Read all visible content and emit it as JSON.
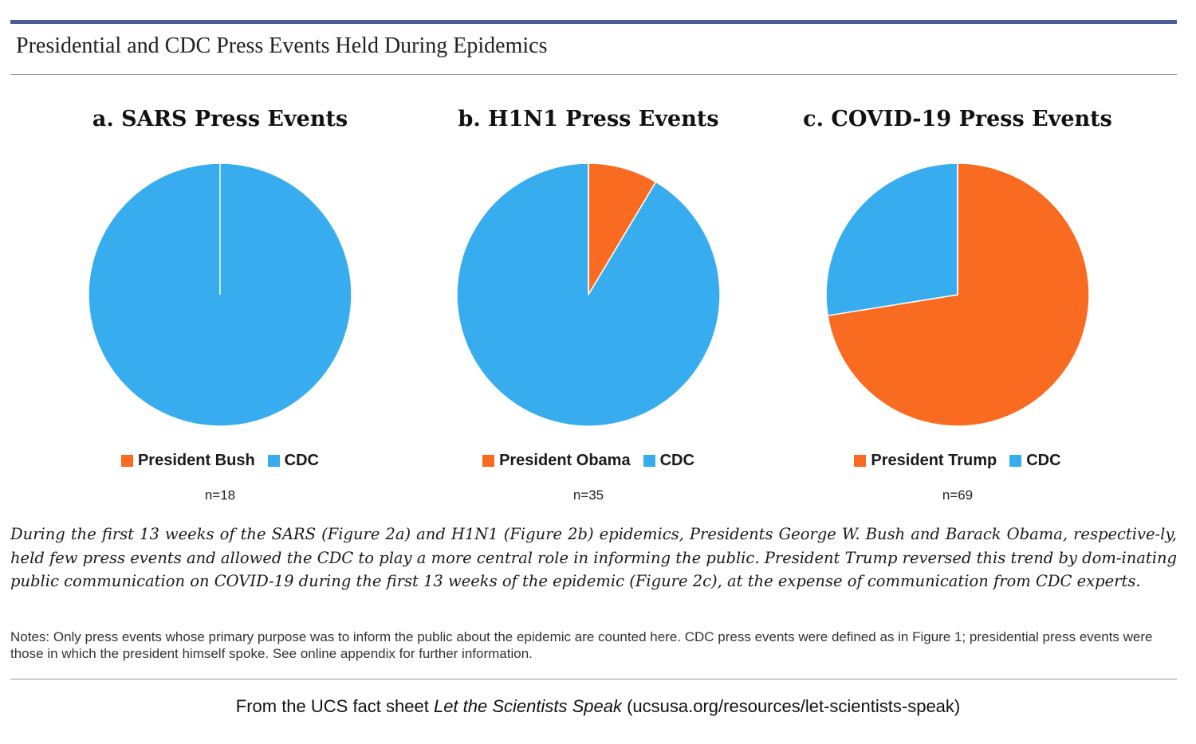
{
  "figure_title": "Presidential and CDC Press Events Held During Epidemics",
  "colors": {
    "president": "#f96b20",
    "cdc": "#37acee",
    "top_bar": "#4d5c99"
  },
  "chart_data": [
    {
      "type": "pie",
      "title": "a. SARS Press Events",
      "labels": [
        "President Bush",
        "CDC"
      ],
      "values": [
        0,
        18
      ],
      "colors": [
        "#f96b20",
        "#37acee"
      ],
      "n_label": "n=18"
    },
    {
      "type": "pie",
      "title": "b. H1N1 Press Events",
      "labels": [
        "President Obama",
        "CDC"
      ],
      "values": [
        3,
        32
      ],
      "colors": [
        "#f96b20",
        "#37acee"
      ],
      "n_label": "n=35"
    },
    {
      "type": "pie",
      "title": "c. COVID-19 Press Events",
      "labels": [
        "President Trump",
        "CDC"
      ],
      "values": [
        50,
        19
      ],
      "colors": [
        "#f96b20",
        "#37acee"
      ],
      "n_label": "n=69"
    }
  ],
  "caption": "During the first 13 weeks of the SARS (Figure 2a) and H1N1 (Figure 2b) epidemics, Presidents George W. Bush and Barack Obama, respective-ly, held few press events and allowed the CDC to play a more central role in informing the public. President Trump reversed this trend by dom-inating public communication on COVID-19 during the first 13 weeks of the epidemic (Figure 2c), at the expense of communication from CDC experts.",
  "notes": "Notes: Only press events whose primary purpose was to inform the public about the epidemic are counted here. CDC press events were defined as in Figure 1; presidential press events were those in which the president himself spoke. See online appendix for further information.",
  "source": {
    "prefix": "From the UCS fact sheet ",
    "title": "Let the Scientists Speak",
    "suffix": " (ucsusa.org/resources/let-scientists-speak)"
  }
}
